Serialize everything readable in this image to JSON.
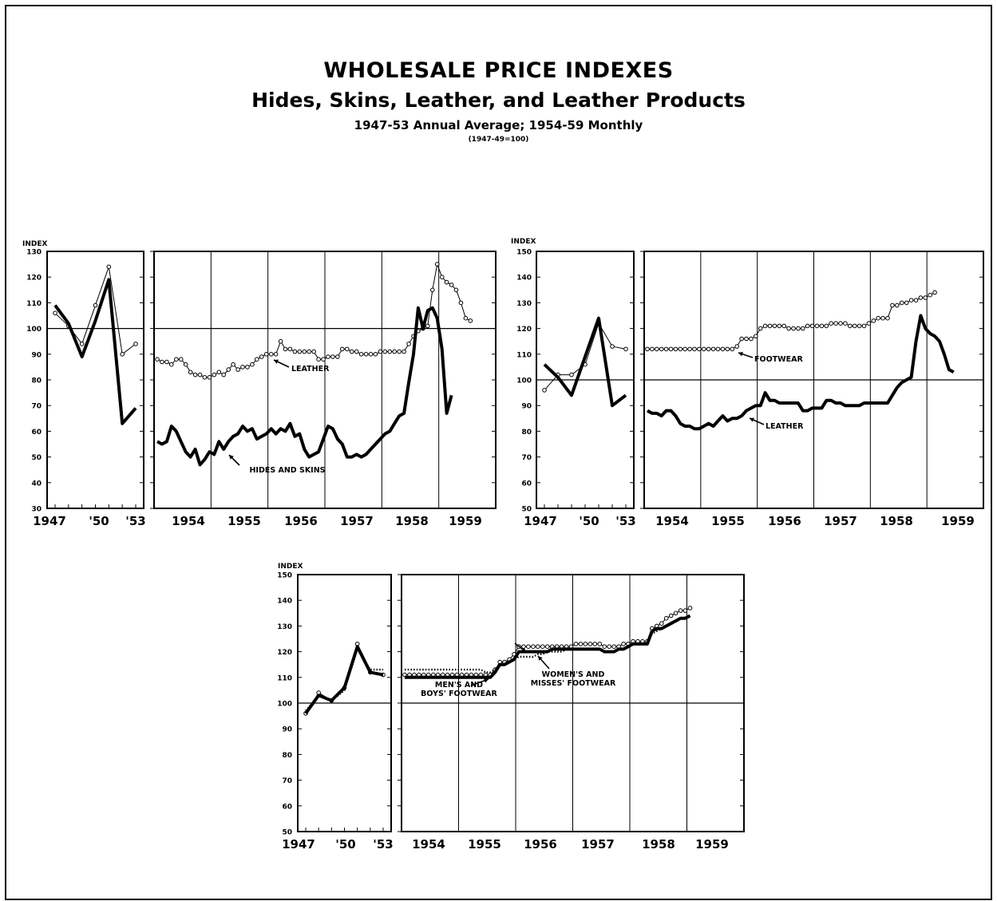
{
  "header": {
    "title": "WHOLESALE PRICE INDEXES",
    "subtitle": "Hides, Skins, Leather, and Leather Products",
    "period": "1947-53 Annual Average; 1954-59 Monthly",
    "base": "(1947-49=100)"
  },
  "chart_data": [
    {
      "type": "line",
      "id": "chart1",
      "ylabel": "INDEX",
      "ylim": [
        30,
        130
      ],
      "yticks": [
        30,
        40,
        50,
        60,
        70,
        80,
        90,
        100,
        110,
        120,
        130
      ],
      "annual": {
        "x": [
          1947,
          1948,
          1949,
          1950,
          1951,
          1952,
          1953
        ],
        "tick_labels": [
          "1947",
          "'50",
          "'53"
        ],
        "series": [
          {
            "name": "LEATHER",
            "style": "circles",
            "values": [
              106,
              101,
              94,
              109,
              124,
              90,
              94
            ]
          },
          {
            "name": "HIDES AND SKINS",
            "style": "thick",
            "values": [
              109,
              102,
              89,
              103,
              119,
              63,
              69
            ]
          }
        ]
      },
      "monthly": {
        "years": [
          "1954",
          "1955",
          "1956",
          "1957",
          "1958",
          "1959"
        ],
        "series": [
          {
            "name": "LEATHER",
            "style": "circles",
            "label": "LEATHER",
            "values": [
              88,
              87,
              87,
              86,
              88,
              88,
              86,
              83,
              82,
              82,
              81,
              81,
              82,
              83,
              82,
              84,
              86,
              84,
              85,
              85,
              86,
              88,
              89,
              90,
              90,
              90,
              95,
              92,
              92,
              91,
              91,
              91,
              91,
              91,
              88,
              88,
              89,
              89,
              89,
              92,
              92,
              91,
              91,
              90,
              90,
              90,
              90,
              91,
              91,
              91,
              91,
              91,
              91,
              94,
              97,
              99,
              100,
              101,
              115,
              125,
              120,
              118,
              117,
              115,
              110,
              104,
              103
            ]
          },
          {
            "name": "HIDES AND SKINS",
            "style": "thick",
            "label": "HIDES AND SKINS",
            "values": [
              56,
              55,
              56,
              62,
              60,
              56,
              52,
              50,
              53,
              47,
              49,
              52,
              51,
              56,
              53,
              56,
              58,
              59,
              62,
              60,
              61,
              57,
              58,
              59,
              61,
              59,
              61,
              60,
              63,
              58,
              59,
              53,
              50,
              51,
              52,
              57,
              62,
              61,
              57,
              55,
              50,
              50,
              51,
              50,
              51,
              53,
              55,
              57,
              59,
              60,
              63,
              66,
              67,
              79,
              90,
              108,
              100,
              107,
              108,
              104,
              92,
              67,
              74
            ]
          }
        ]
      }
    },
    {
      "type": "line",
      "id": "chart2",
      "ylabel": "INDEX",
      "ylim": [
        50,
        150
      ],
      "yticks": [
        50,
        60,
        70,
        80,
        90,
        100,
        110,
        120,
        130,
        140,
        150
      ],
      "annual": {
        "x": [
          1947,
          1948,
          1949,
          1950,
          1951,
          1952,
          1953
        ],
        "tick_labels": [
          "1947",
          "'50",
          "'53"
        ],
        "series": [
          {
            "name": "FOOTWEAR",
            "style": "circles",
            "values": [
              96,
              102,
              102,
              106,
              122,
              113,
              112
            ]
          },
          {
            "name": "LEATHER",
            "style": "thick",
            "values": [
              106,
              101,
              94,
              109,
              124,
              90,
              94
            ]
          }
        ]
      },
      "monthly": {
        "years": [
          "1954",
          "1955",
          "1956",
          "1957",
          "1958",
          "1959"
        ],
        "series": [
          {
            "name": "FOOTWEAR",
            "style": "circles",
            "label": "FOOTWEAR",
            "values": [
              112,
              112,
              112,
              112,
              112,
              112,
              112,
              112,
              112,
              112,
              112,
              112,
              112,
              112,
              112,
              112,
              112,
              112,
              112,
              113,
              116,
              116,
              116,
              117,
              120,
              121,
              121,
              121,
              121,
              121,
              120,
              120,
              120,
              120,
              121,
              121,
              121,
              121,
              121,
              122,
              122,
              122,
              122,
              121,
              121,
              121,
              121,
              122,
              123,
              124,
              124,
              124,
              129,
              129,
              130,
              130,
              131,
              131,
              132,
              132,
              133,
              134
            ]
          },
          {
            "name": "LEATHER",
            "style": "thick",
            "label": "LEATHER",
            "values": [
              88,
              87,
              87,
              86,
              88,
              88,
              86,
              83,
              82,
              82,
              81,
              81,
              82,
              83,
              82,
              84,
              86,
              84,
              85,
              85,
              86,
              88,
              89,
              90,
              90,
              95,
              92,
              92,
              91,
              91,
              91,
              91,
              91,
              88,
              88,
              89,
              89,
              89,
              92,
              92,
              91,
              91,
              90,
              90,
              90,
              90,
              91,
              91,
              91,
              91,
              91,
              91,
              94,
              97,
              99,
              100,
              101,
              115,
              125,
              120,
              118,
              117,
              115,
              110,
              104,
              103
            ]
          }
        ]
      }
    },
    {
      "type": "line",
      "id": "chart3",
      "ylabel": "INDEX",
      "ylim": [
        50,
        150
      ],
      "yticks": [
        50,
        60,
        70,
        80,
        90,
        100,
        110,
        120,
        130,
        140,
        150
      ],
      "annual": {
        "x": [
          1947,
          1948,
          1949,
          1950,
          1951,
          1952,
          1953
        ],
        "tick_labels": [
          "1947",
          "'50",
          "'53"
        ],
        "series": [
          {
            "name": "FOOTWEAR",
            "style": "circles",
            "values": [
              96,
              104,
              101,
              106,
              123,
              112,
              111
            ]
          },
          {
            "name": "MEN'S AND BOYS' FOOTWEAR",
            "style": "dotted",
            "values": [
              97,
              103,
              101,
              105,
              121,
              113,
              113
            ]
          },
          {
            "name": "WOMEN'S AND MISSES' FOOTWEAR",
            "style": "thick",
            "values": [
              96,
              103,
              101,
              106,
              122,
              112,
              111
            ]
          }
        ]
      },
      "monthly": {
        "years": [
          "1954",
          "1955",
          "1956",
          "1957",
          "1958",
          "1959"
        ],
        "series": [
          {
            "name": "FOOTWEAR",
            "style": "circles",
            "values": [
              111,
              111,
              111,
              111,
              111,
              111,
              111,
              111,
              111,
              111,
              111,
              111,
              111,
              111,
              111,
              111,
              111,
              111,
              111,
              113,
              116,
              116,
              117,
              119,
              122,
              122,
              122,
              122,
              122,
              122,
              122,
              122,
              122,
              122,
              122,
              122,
              123,
              123,
              123,
              123,
              123,
              123,
              122,
              122,
              122,
              122,
              123,
              123,
              124,
              124,
              124,
              124,
              129,
              130,
              131,
              133,
              134,
              135,
              136,
              136,
              137
            ]
          },
          {
            "name": "MEN'S AND BOYS' FOOTWEAR",
            "style": "dotted",
            "label": "MEN'S AND BOYS' FOOTWEAR",
            "values": [
              113,
              113,
              113,
              113,
              113,
              113,
              113,
              113,
              113,
              113,
              113,
              113,
              113,
              113,
              113,
              113,
              113,
              112,
              112,
              113,
              115,
              115,
              116,
              117,
              118,
              118,
              118,
              118,
              119,
              119,
              120,
              120,
              120,
              120,
              121,
              121,
              121,
              121,
              121,
              121,
              121,
              121,
              120,
              120,
              120,
              121,
              121,
              122,
              123,
              123,
              123,
              123,
              127,
              128,
              129,
              130,
              131,
              132,
              133,
              133,
              134
            ]
          },
          {
            "name": "WOMEN'S AND MISSES' FOOTWEAR",
            "style": "thick",
            "label": "WOMEN'S AND MISSES' FOOTWEAR",
            "values": [
              110,
              110,
              110,
              110,
              110,
              110,
              110,
              110,
              110,
              110,
              110,
              110,
              110,
              110,
              110,
              110,
              110,
              110,
              110,
              112,
              115,
              115,
              116,
              117,
              120,
              120,
              120,
              120,
              120,
              120,
              120,
              121,
              121,
              121,
              121,
              121,
              121,
              121,
              121,
              121,
              121,
              121,
              120,
              120,
              120,
              121,
              121,
              122,
              123,
              123,
              123,
              123,
              128,
              129,
              129,
              130,
              131,
              132,
              133,
              133,
              134
            ]
          }
        ]
      }
    }
  ]
}
